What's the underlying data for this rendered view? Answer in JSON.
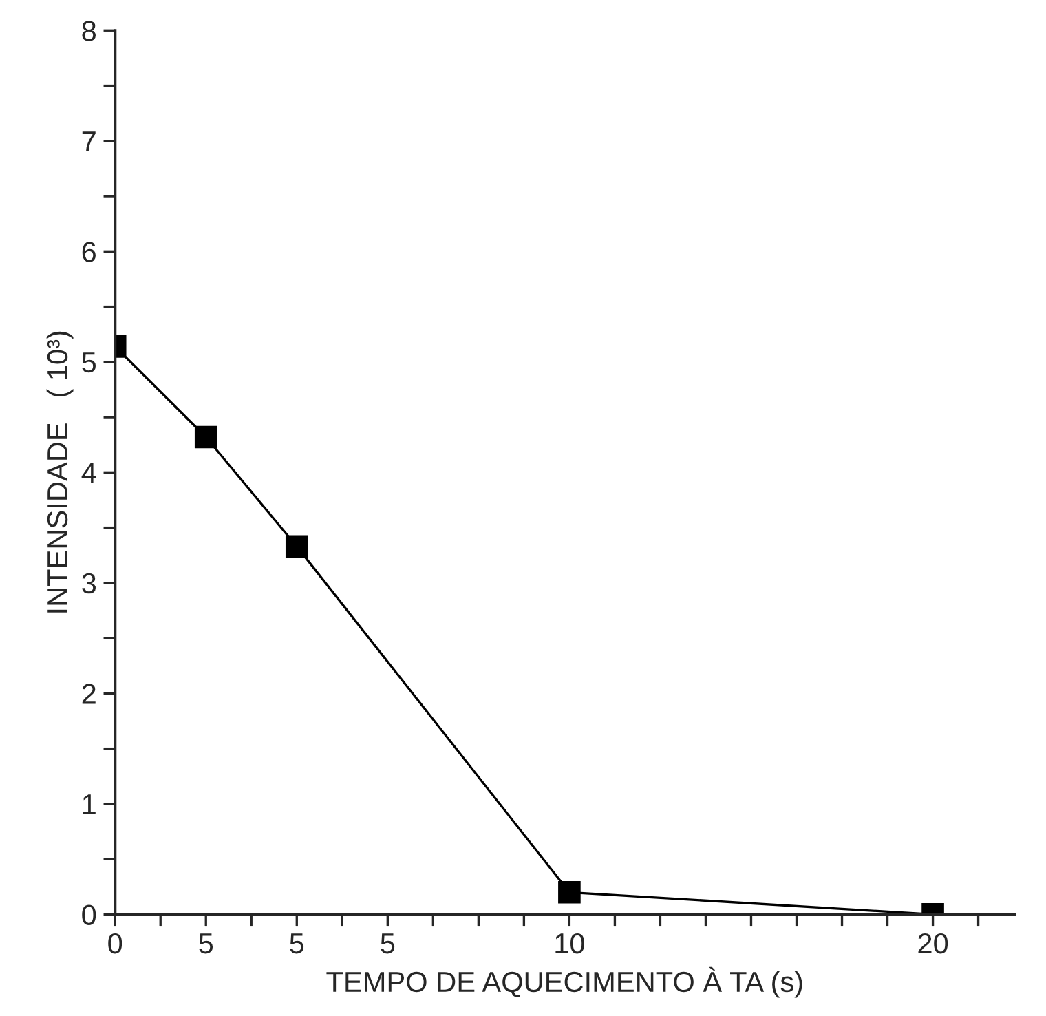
{
  "chart_data": {
    "type": "line",
    "xlabel": "TEMPO DE AQUECIMENTO À TA (s)",
    "ylabel": "INTENSIDADE   ( 10³)",
    "categories": [
      "0",
      "5",
      "5",
      "5",
      null,
      "10",
      null,
      null,
      null,
      "20"
    ],
    "series": [
      {
        "color": "#000000",
        "values": [
          5.14,
          4.32,
          3.33,
          null,
          null,
          0.2,
          null,
          null,
          null,
          0
        ]
      }
    ],
    "marker": "square",
    "line_style": "solid",
    "grid": false,
    "ylim": [
      0,
      8
    ],
    "yticks": [
      0,
      {
        "value": 0.5,
        "label": null
      },
      1,
      {
        "value": 1.5,
        "label": null
      },
      2,
      {
        "value": 2.5,
        "label": null
      },
      3,
      {
        "value": 3.5,
        "label": null
      },
      4,
      {
        "value": 4.5,
        "label": null
      },
      5,
      {
        "value": 5.5,
        "label": null
      },
      6,
      {
        "value": 6.5,
        "label": null
      },
      7,
      {
        "value": 7.5,
        "label": null
      },
      8
    ]
  }
}
